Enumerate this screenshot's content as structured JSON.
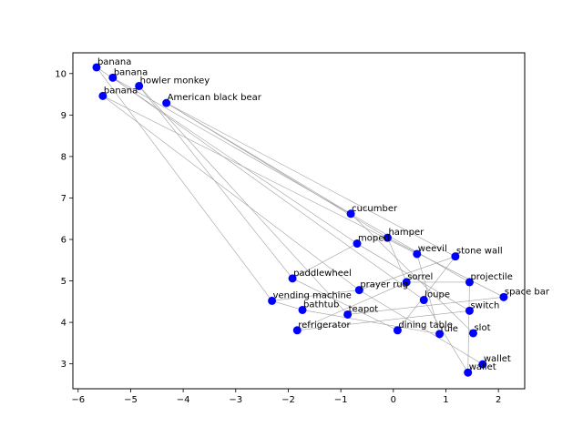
{
  "chart_data": {
    "type": "scatter",
    "title": "",
    "xlabel": "",
    "ylabel": "",
    "xlim": [
      -6.1,
      2.5
    ],
    "ylim": [
      2.4,
      10.5
    ],
    "xticks": [
      -6,
      -5,
      -4,
      -3,
      -2,
      -1,
      0,
      1,
      2
    ],
    "yticks": [
      3,
      4,
      5,
      6,
      7,
      8,
      9,
      10
    ],
    "grid": false,
    "point_color": "#0000ff",
    "edge_color": "#a0a0a0",
    "points": [
      {
        "label": "banana",
        "x": -5.65,
        "y": 10.15
      },
      {
        "label": "banana",
        "x": -5.34,
        "y": 9.9
      },
      {
        "label": "howler monkey",
        "x": -4.84,
        "y": 9.7
      },
      {
        "label": "banana",
        "x": -5.53,
        "y": 9.46
      },
      {
        "label": "American black bear",
        "x": -4.32,
        "y": 9.29
      },
      {
        "label": "cucumber",
        "x": -0.81,
        "y": 6.62
      },
      {
        "label": "hamper",
        "x": -0.11,
        "y": 6.04
      },
      {
        "label": "moped",
        "x": -0.69,
        "y": 5.9
      },
      {
        "label": "weevil",
        "x": 0.45,
        "y": 5.65
      },
      {
        "label": "stone wall",
        "x": 1.18,
        "y": 5.59
      },
      {
        "label": "paddlewheel",
        "x": -1.92,
        "y": 5.06
      },
      {
        "label": "sorrel",
        "x": 0.25,
        "y": 4.97
      },
      {
        "label": "projectile",
        "x": 1.45,
        "y": 4.97
      },
      {
        "label": "prayer rug",
        "x": -0.65,
        "y": 4.78
      },
      {
        "label": "space bar",
        "x": 2.1,
        "y": 4.61
      },
      {
        "label": "vending machine",
        "x": -2.31,
        "y": 4.52
      },
      {
        "label": "loupe",
        "x": 0.58,
        "y": 4.54
      },
      {
        "label": "bathtub",
        "x": -1.73,
        "y": 4.3
      },
      {
        "label": "switch",
        "x": 1.45,
        "y": 4.28
      },
      {
        "label": "teapot",
        "x": -0.87,
        "y": 4.19
      },
      {
        "label": "refrigerator",
        "x": -1.83,
        "y": 3.81
      },
      {
        "label": "dining table",
        "x": 0.08,
        "y": 3.81
      },
      {
        "label": "rule",
        "x": 0.88,
        "y": 3.72
      },
      {
        "label": "slot",
        "x": 1.52,
        "y": 3.74
      },
      {
        "label": "wallet",
        "x": 1.7,
        "y": 2.99
      },
      {
        "label": "wallet",
        "x": 1.42,
        "y": 2.79
      }
    ],
    "edges": [
      [
        0,
        7
      ],
      [
        0,
        15
      ],
      [
        1,
        12
      ],
      [
        1,
        16
      ],
      [
        2,
        10
      ],
      [
        2,
        19
      ],
      [
        3,
        8
      ],
      [
        3,
        13
      ],
      [
        4,
        5
      ],
      [
        4,
        9
      ],
      [
        4,
        6
      ],
      [
        5,
        23
      ],
      [
        6,
        14
      ],
      [
        7,
        18
      ],
      [
        8,
        22
      ],
      [
        9,
        21
      ],
      [
        10,
        21
      ],
      [
        11,
        20
      ],
      [
        11,
        12
      ],
      [
        12,
        25
      ],
      [
        13,
        15
      ],
      [
        13,
        24
      ],
      [
        14,
        19
      ],
      [
        15,
        17
      ],
      [
        16,
        25
      ],
      [
        17,
        22
      ],
      [
        18,
        20
      ],
      [
        6,
        11
      ],
      [
        7,
        10
      ],
      [
        9,
        13
      ]
    ]
  }
}
